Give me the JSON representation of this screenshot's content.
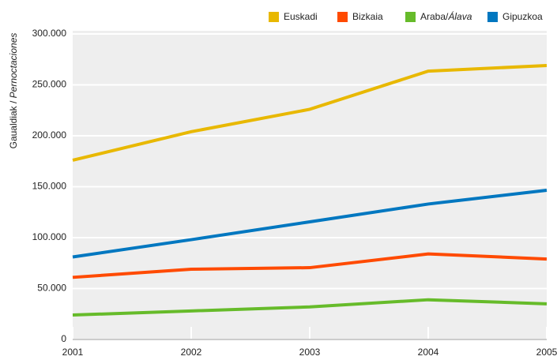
{
  "chart_data": {
    "type": "line",
    "ylabel": "Gaualdiak / Pernoctaciones",
    "x": [
      2001,
      2002,
      2003,
      2004,
      2005
    ],
    "xlim": [
      2001,
      2005
    ],
    "xticks": [
      2001,
      2002,
      2003,
      2004,
      2005
    ],
    "ylim": [
      0,
      300000
    ],
    "yticks": [
      0,
      {
        "value": 50000,
        "label": "50.000"
      },
      {
        "value": 100000,
        "label": "100.000"
      },
      {
        "value": 150000,
        "label": "150.000"
      },
      {
        "value": 200000,
        "label": "200.000"
      },
      {
        "value": 250000,
        "label": "250.000"
      },
      {
        "value": 300000,
        "label": "300.000"
      }
    ],
    "grid": true,
    "legend": "top-right",
    "series": [
      {
        "name": "Euskadi",
        "color": "#e8b800",
        "values": [
          176000,
          204000,
          226000,
          263500,
          269000
        ]
      },
      {
        "name": "Bizkaia",
        "color": "#ff4a00",
        "values": [
          61000,
          69000,
          70500,
          84000,
          79000
        ]
      },
      {
        "name": "Araba/Álava",
        "color": "#66bb2a",
        "values": [
          24000,
          28000,
          32000,
          39000,
          35000
        ]
      },
      {
        "name": "Gipuzkoa",
        "color": "#0077c0",
        "values": [
          81000,
          98000,
          115500,
          133000,
          146500
        ]
      }
    ]
  }
}
